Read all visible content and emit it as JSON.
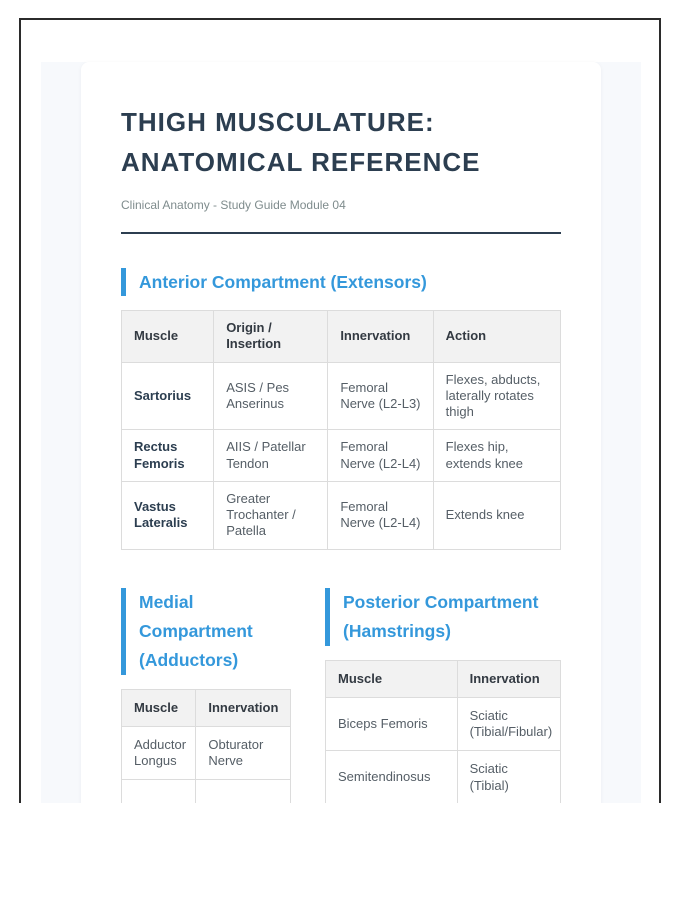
{
  "colors": {
    "accent_blue": "#3498db",
    "primary_dark": "#2c3e50",
    "subtitle_gray": "#7f8c8d"
  },
  "header": {
    "title_line1": "THIGH MUSCULATURE:",
    "title_line2": "ANATOMICAL REFERENCE",
    "subtitle": "Clinical Anatomy - Study Guide Module 04"
  },
  "anterior": {
    "heading": "Anterior Compartment (Extensors)",
    "columns": [
      "Muscle",
      "Origin / Insertion",
      "Innervation",
      "Action"
    ],
    "rows": [
      {
        "muscle": "Sartorius",
        "origin": "ASIS / Pes Anserinus",
        "innervation": "Femoral Nerve (L2-L3)",
        "action": "Flexes, abducts, laterally rotates thigh"
      },
      {
        "muscle": "Rectus Femoris",
        "origin": "AIIS / Patellar Tendon",
        "innervation": "Femoral Nerve (L2-L4)",
        "action": "Flexes hip, extends knee"
      },
      {
        "muscle": "Vastus Lateralis",
        "origin": "Greater Trochanter / Patella",
        "innervation": "Femoral Nerve (L2-L4)",
        "action": "Extends knee"
      }
    ]
  },
  "medial": {
    "heading": "Medial Compartment (Adductors)",
    "columns": [
      "Muscle",
      "Innervation"
    ],
    "rows": [
      {
        "muscle": "Adductor Longus",
        "innervation": "Obturator Nerve"
      }
    ]
  },
  "posterior": {
    "heading": "Posterior Compartment (Hamstrings)",
    "columns": [
      "Muscle",
      "Innervation"
    ],
    "rows": [
      {
        "muscle": "Biceps Femoris",
        "innervation": "Sciatic (Tibial/Fibular)"
      },
      {
        "muscle": "Semitendinosus",
        "innervation": "Sciatic (Tibial)"
      }
    ]
  }
}
